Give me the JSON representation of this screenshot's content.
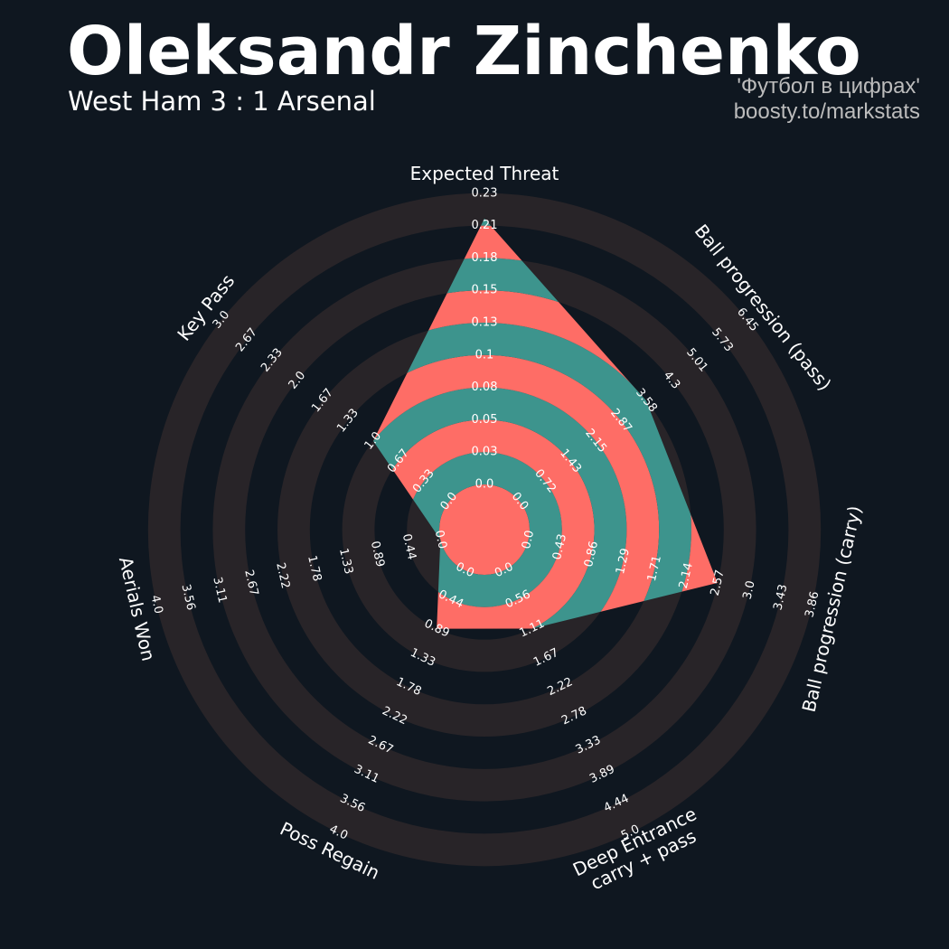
{
  "header": {
    "title": "Oleksandr Zinchenko",
    "subtitle": "West Ham 3 : 1 Arsenal",
    "credit_line1": "'Футбол в цифрах'",
    "credit_line2": "boosty.to/markstats"
  },
  "chart_data": {
    "type": "radar",
    "colors": {
      "background": "#0f1720",
      "ring_band": "#282428",
      "fill_a": "#fe6d66",
      "fill_b": "#3d948d",
      "label": "#ffffff"
    },
    "grid_levels": 9,
    "params": [
      {
        "label": [
          "Expected Threat"
        ],
        "ticks": [
          "0.0",
          "0.03",
          "0.05",
          "0.08",
          "0.1",
          "0.13",
          "0.15",
          "0.18",
          "0.21",
          "0.23"
        ],
        "range": [
          0.0,
          0.23
        ],
        "value": 0.21
      },
      {
        "label": [
          "Ball progression (pass)"
        ],
        "ticks": [
          "0.0",
          "0.72",
          "1.43",
          "2.15",
          "2.87",
          "3.58",
          "4.3",
          "5.01",
          "5.73",
          "6.45"
        ],
        "range": [
          0.0,
          6.45
        ],
        "value": 3.58
      },
      {
        "label": [
          "Ball progression (carry)"
        ],
        "ticks": [
          "0.0",
          "0.43",
          "0.86",
          "1.29",
          "1.71",
          "2.14",
          "2.57",
          "3.0",
          "3.43",
          "3.86"
        ],
        "range": [
          0.0,
          3.86
        ],
        "value": 2.57
      },
      {
        "label": [
          "Deep Entrance",
          "carry + pass"
        ],
        "ticks": [
          "0.0",
          "0.56",
          "1.11",
          "1.67",
          "2.22",
          "2.78",
          "3.33",
          "3.89",
          "4.44",
          "5.0"
        ],
        "range": [
          0.0,
          5.0
        ],
        "value": 1.11
      },
      {
        "label": [
          "Poss Regain"
        ],
        "ticks": [
          "0.0",
          "0.44",
          "0.89",
          "1.33",
          "1.78",
          "2.22",
          "2.67",
          "3.11",
          "3.56",
          "4.0"
        ],
        "range": [
          0.0,
          4.0
        ],
        "value": 0.89
      },
      {
        "label": [
          "Aerials Won"
        ],
        "ticks": [
          "0.0",
          "0.44",
          "0.89",
          "1.33",
          "1.78",
          "2.22",
          "2.67",
          "3.11",
          "3.56",
          "4.0"
        ],
        "range": [
          0.0,
          4.0
        ],
        "value": 0.0
      },
      {
        "label": [
          "Key Pass"
        ],
        "ticks": [
          "0.0",
          "0.33",
          "0.67",
          "1.0",
          "1.33",
          "1.67",
          "2.0",
          "2.33",
          "2.67",
          "3.0"
        ],
        "range": [
          0.0,
          3.0
        ],
        "value": 1.0
      }
    ]
  }
}
